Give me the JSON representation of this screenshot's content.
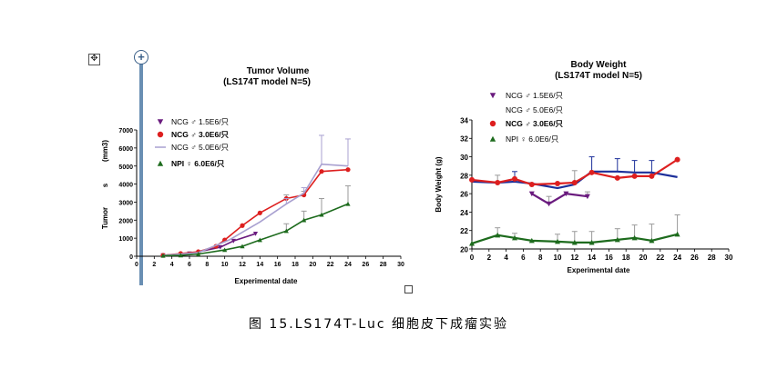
{
  "caption": "图 15.LS174T-Luc 细胞皮下成瘤实验",
  "ui": {
    "move_handle_symbol": "✥",
    "add_symbol": "+"
  },
  "colors": {
    "purple": "#6a1b7e",
    "red": "#dd1f1f",
    "lavender": "#a8a0d0",
    "blue": "#1c2f9a",
    "green": "#1d6b1d",
    "errorbar": "#9a9a9a"
  },
  "chart_data": [
    {
      "type": "line",
      "title": "Tumor Volume",
      "subtitle": "(LS174T model N=5)",
      "xlabel": "Experimental date",
      "ylabel": "Tumor",
      "ylabel_unit": "(mm3)",
      "ylabel_mid": "s",
      "xlim": [
        0,
        30
      ],
      "ylim": [
        0,
        7000
      ],
      "xticks": [
        0,
        2,
        4,
        6,
        8,
        10,
        12,
        14,
        16,
        18,
        20,
        22,
        24,
        26,
        28,
        30
      ],
      "yticks": [
        0,
        1000,
        2000,
        3000,
        4000,
        5000,
        6000,
        7000
      ],
      "grid": false,
      "legend_position": "top-left",
      "series": [
        {
          "name": "NCG ♂ 1.5E6/只",
          "color": "#6a1b7e",
          "marker": "triangle-down",
          "x": [
            3,
            6,
            9.5,
            11,
            13.5
          ],
          "y": [
            50,
            150,
            500,
            850,
            1250
          ],
          "err": [
            0,
            0,
            0,
            0,
            0
          ]
        },
        {
          "name": "NCG ♂ 3.0E6/只",
          "color": "#dd1f1f",
          "marker": "circle",
          "x": [
            3,
            5,
            7,
            9,
            10,
            12,
            14,
            17,
            19,
            21,
            24
          ],
          "y": [
            50,
            150,
            250,
            550,
            900,
            1700,
            2400,
            3200,
            3400,
            4700,
            4800
          ],
          "err": [
            0,
            0,
            0,
            0,
            0,
            0,
            0,
            200,
            200,
            0,
            0
          ]
        },
        {
          "name": "NCG ♂ 5.0E6/只",
          "color": "#a8a0d0",
          "marker": "none",
          "x": [
            3,
            7,
            10.5,
            14,
            17,
            19,
            21,
            24
          ],
          "y": [
            50,
            200,
            900,
            1900,
            2900,
            3500,
            5100,
            5000
          ],
          "err": [
            0,
            0,
            0,
            0,
            300,
            300,
            1600,
            1500
          ]
        },
        {
          "name": "NPI ♀ 6.0E6/只",
          "color": "#1d6b1d",
          "marker": "triangle-up",
          "x": [
            3,
            5,
            7,
            10,
            12,
            14,
            17,
            19,
            21,
            24
          ],
          "y": [
            30,
            50,
            120,
            350,
            550,
            900,
            1400,
            2000,
            2300,
            2900
          ],
          "err": [
            0,
            0,
            0,
            0,
            0,
            0,
            400,
            500,
            900,
            1000
          ]
        }
      ]
    },
    {
      "type": "line",
      "title": "Body Weight",
      "subtitle": "(LS174T model N=5)",
      "xlabel": "Experimental date",
      "ylabel": "Body Weight (g)",
      "xlim": [
        0,
        30
      ],
      "ylim": [
        20,
        34
      ],
      "xticks": [
        0,
        2,
        4,
        6,
        8,
        10,
        12,
        14,
        16,
        18,
        20,
        22,
        24,
        26,
        28,
        30
      ],
      "yticks": [
        20,
        22,
        24,
        26,
        28,
        30,
        32,
        34
      ],
      "grid": false,
      "legend_position": "top-left",
      "series": [
        {
          "name": "NCG ♂ 1.5E6/只",
          "color": "#6a1b7e",
          "marker": "triangle-down",
          "x": [
            7,
            9,
            11,
            13.5
          ],
          "y": [
            26,
            24.9,
            26,
            25.7
          ],
          "err": [
            0,
            0.8,
            0,
            0.5
          ]
        },
        {
          "name": "NCG ♂ 5.0E6/只",
          "color": "#1c2f9a",
          "marker": "none",
          "x": [
            0,
            3,
            5,
            7,
            10,
            12,
            14,
            17,
            19,
            21,
            24
          ],
          "y": [
            27.3,
            27.2,
            27.3,
            27.1,
            26.6,
            27.0,
            28.4,
            28.4,
            28.3,
            28.3,
            27.8
          ],
          "err": [
            0,
            0,
            1.1,
            0,
            0,
            0,
            1.6,
            1.4,
            1.3,
            1.3,
            0
          ]
        },
        {
          "name": "NCG ♂ 3.0E6/只",
          "color": "#dd1f1f",
          "marker": "circle",
          "x": [
            0,
            3,
            5,
            7,
            10,
            12,
            14,
            17,
            19,
            21,
            24
          ],
          "y": [
            27.5,
            27.2,
            27.6,
            27.0,
            27.1,
            27.2,
            28.3,
            27.7,
            27.9,
            27.9,
            29.7
          ],
          "err": [
            0,
            0.8,
            0,
            0,
            0,
            1.3,
            0,
            0,
            0,
            0,
            0
          ]
        },
        {
          "name": "NPI ♀ 6.0E6/只",
          "color": "#1d6b1d",
          "marker": "triangle-up",
          "x": [
            0,
            3,
            5,
            7,
            10,
            12,
            14,
            17,
            19,
            21,
            24
          ],
          "y": [
            20.6,
            21.5,
            21.2,
            20.9,
            20.8,
            20.7,
            20.7,
            21.0,
            21.2,
            20.9,
            21.6
          ],
          "err": [
            0,
            0.8,
            0.5,
            0,
            0.8,
            1.2,
            1.2,
            1.2,
            1.4,
            1.8,
            2.1
          ]
        }
      ]
    }
  ]
}
